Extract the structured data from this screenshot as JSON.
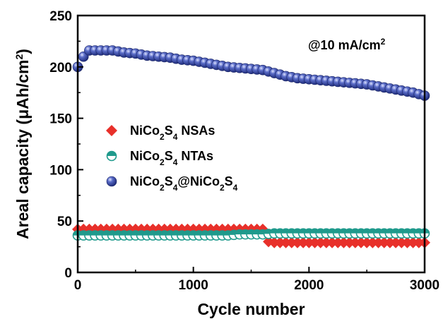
{
  "chart_data": {
    "type": "scatter",
    "title": "",
    "annotation": {
      "text": "@10 mA/cm",
      "sup": "2"
    },
    "xlabel": "Cycle number",
    "ylabel": {
      "text": "Areal capacity (μAh/cm",
      "sup": "2",
      "close": ")"
    },
    "xlim": [
      0,
      3000
    ],
    "ylim": [
      0,
      250
    ],
    "xticks": [
      "0",
      "1000",
      "2000",
      "3000"
    ],
    "yticks": [
      "0",
      "50",
      "100",
      "150",
      "200",
      "250"
    ],
    "grid": false,
    "legend_position": "center-left",
    "series": [
      {
        "name": "NiCo2S4 NSAs",
        "label_parts": [
          [
            "NiCo",
            ""
          ],
          [
            "2",
            "sub"
          ],
          [
            "S",
            ""
          ],
          [
            "4",
            "sub"
          ],
          [
            " NSAs",
            ""
          ]
        ],
        "marker": "diamond",
        "color": "#e8302a",
        "x": [
          0,
          100,
          200,
          300,
          400,
          500,
          600,
          700,
          800,
          900,
          1000,
          1100,
          1200,
          1300,
          1400,
          1500,
          1600,
          1650,
          1700,
          1800,
          1900,
          2000,
          2100,
          2200,
          2300,
          2400,
          2500,
          2600,
          2700,
          2800,
          2900,
          3000
        ],
        "y": [
          42,
          42,
          42,
          42,
          42,
          42,
          42,
          42,
          42,
          42,
          42,
          42,
          42,
          42,
          42,
          42,
          42,
          30,
          29,
          29,
          29,
          29,
          29,
          29,
          29,
          29,
          29,
          29,
          29,
          29,
          29,
          29
        ]
      },
      {
        "name": "NiCo2S4 NTAs",
        "label_parts": [
          [
            "NiCo",
            ""
          ],
          [
            "2",
            "sub"
          ],
          [
            "S",
            ""
          ],
          [
            "4",
            "sub"
          ],
          [
            " NTAs",
            ""
          ]
        ],
        "marker": "half-circle",
        "color": "#1f9a8c",
        "x": [
          0,
          100,
          200,
          300,
          400,
          500,
          600,
          700,
          800,
          900,
          1000,
          1100,
          1200,
          1300,
          1400,
          1500,
          1600,
          1700,
          1800,
          1900,
          2000,
          2100,
          2200,
          2300,
          2400,
          2500,
          2600,
          2700,
          2800,
          2900,
          3000
        ],
        "y": [
          36,
          36,
          36,
          36,
          36,
          36,
          36,
          36,
          36,
          36,
          36,
          36,
          36,
          36,
          37,
          37,
          37,
          38,
          38,
          38,
          38,
          38,
          38,
          38,
          38,
          38,
          38,
          38,
          38,
          38,
          38
        ]
      },
      {
        "name": "NiCo2S4@NiCo2S4",
        "label_parts": [
          [
            "NiCo",
            ""
          ],
          [
            "2",
            "sub"
          ],
          [
            "S",
            ""
          ],
          [
            "4",
            "sub"
          ],
          [
            "@NiCo",
            ""
          ],
          [
            "2",
            "sub"
          ],
          [
            "S",
            ""
          ],
          [
            "4",
            "sub"
          ]
        ],
        "marker": "sphere",
        "color": "#3c4fa8",
        "x": [
          0,
          50,
          100,
          200,
          300,
          400,
          500,
          600,
          700,
          800,
          900,
          1000,
          1100,
          1200,
          1300,
          1400,
          1500,
          1600,
          1700,
          1800,
          1900,
          2000,
          2100,
          2200,
          2300,
          2400,
          2500,
          2600,
          2700,
          2800,
          2900,
          3000
        ],
        "y": [
          200,
          210,
          216,
          216,
          216,
          214,
          213,
          211,
          210,
          209,
          207,
          206,
          204,
          202,
          200,
          199,
          198,
          197,
          194,
          191,
          189,
          188,
          187,
          186,
          185,
          184,
          183,
          181,
          179,
          177,
          175,
          172
        ]
      }
    ]
  }
}
